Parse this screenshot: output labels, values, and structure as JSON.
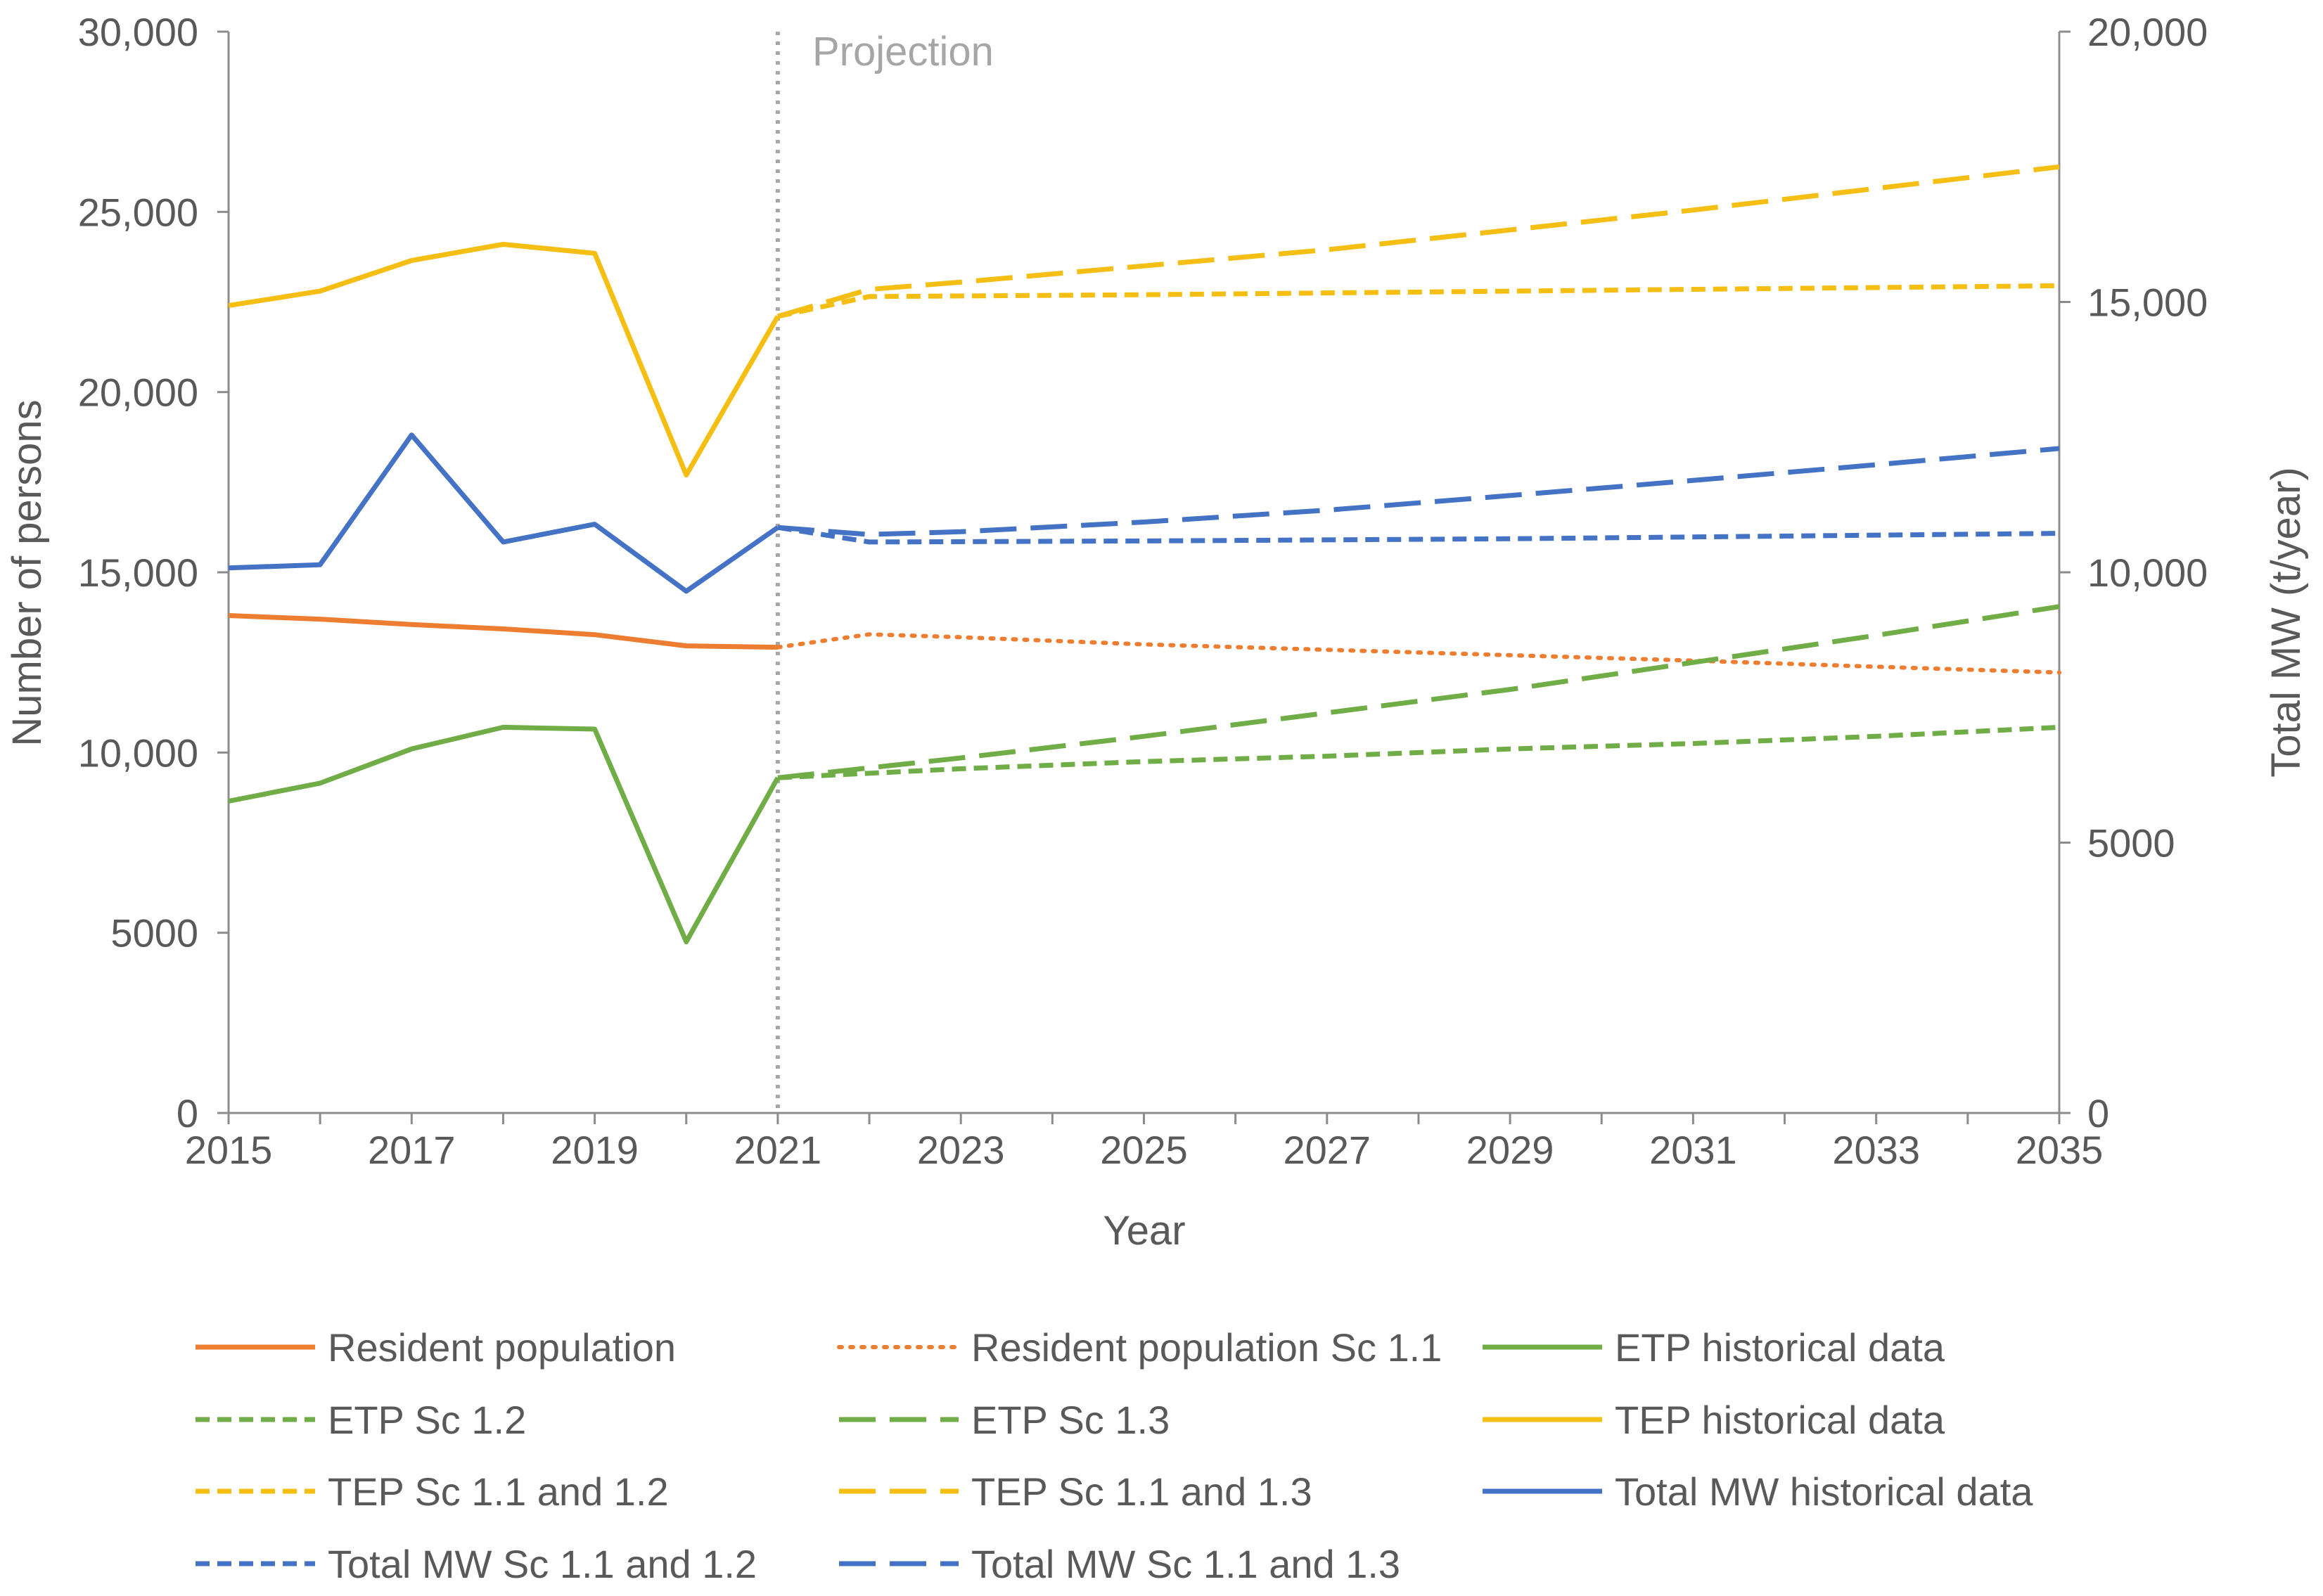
{
  "chart_data": {
    "type": "line",
    "xlabel": "Year",
    "ylabel_left": "Number of persons",
    "ylabel_right": "Total MW (t/year)",
    "xlim": [
      2015,
      2035
    ],
    "ylim_left": [
      0,
      30000
    ],
    "ylim_right": [
      0,
      20000
    ],
    "x_ticks": [
      "2015",
      "2017",
      "2019",
      "2021",
      "2023",
      "2025",
      "2027",
      "2029",
      "2031",
      "2033",
      "2035"
    ],
    "y_left_ticks": [
      {
        "value": 0,
        "label": "0"
      },
      {
        "value": 5000,
        "label": "5000"
      },
      {
        "value": 10000,
        "label": "10,000"
      },
      {
        "value": 15000,
        "label": "15,000"
      },
      {
        "value": 20000,
        "label": "20,000"
      },
      {
        "value": 25000,
        "label": "25,000"
      },
      {
        "value": 30000,
        "label": "30,000"
      }
    ],
    "y_right_ticks": [
      {
        "value": 0,
        "label": "0"
      },
      {
        "value": 5000,
        "label": "5000"
      },
      {
        "value": 10000,
        "label": "10,000"
      },
      {
        "value": 15000,
        "label": "15,000"
      },
      {
        "value": 20000,
        "label": "20,000"
      }
    ],
    "projection_start": 2021,
    "projection_label": "Projection",
    "colors": {
      "resident": "#ED7D31",
      "etp": "#70AD47",
      "tep": "#F5BE12",
      "mw": "#4472C4",
      "axis": "#8c8c8c",
      "divider": "#a6a6a6",
      "text": "#595959"
    },
    "series": [
      {
        "name": "Resident population",
        "color": "#ED7D31",
        "dash": "solid",
        "axis": "left",
        "x": [
          2015,
          2016,
          2017,
          2018,
          2019,
          2020,
          2021
        ],
        "y": [
          13800,
          13700,
          13550,
          13430,
          13270,
          12960,
          12920
        ]
      },
      {
        "name": "Resident population Sc 1.1",
        "color": "#ED7D31",
        "dash": "dot",
        "axis": "left",
        "x": [
          2021,
          2022,
          2023,
          2025,
          2027,
          2029,
          2031,
          2033,
          2035
        ],
        "y": [
          12920,
          13280,
          13200,
          13000,
          12850,
          12700,
          12550,
          12380,
          12220
        ]
      },
      {
        "name": "ETP historical data",
        "color": "#70AD47",
        "dash": "solid",
        "axis": "left",
        "x": [
          2015,
          2016,
          2017,
          2018,
          2019,
          2020,
          2021
        ],
        "y": [
          8650,
          9150,
          10100,
          10700,
          10650,
          4750,
          9300
        ]
      },
      {
        "name": "ETP Sc 1.2",
        "color": "#70AD47",
        "dash": "short",
        "axis": "left",
        "x": [
          2021,
          2023,
          2025,
          2027,
          2029,
          2031,
          2033,
          2035
        ],
        "y": [
          9300,
          9550,
          9750,
          9900,
          10100,
          10250,
          10450,
          10700
        ]
      },
      {
        "name": "ETP Sc 1.3",
        "color": "#70AD47",
        "dash": "long",
        "axis": "left",
        "x": [
          2021,
          2023,
          2025,
          2027,
          2029,
          2031,
          2033,
          2035
        ],
        "y": [
          9300,
          9850,
          10450,
          11100,
          11750,
          12500,
          13250,
          14050
        ]
      },
      {
        "name": "TEP historical data",
        "color": "#F5BE12",
        "dash": "solid",
        "axis": "left",
        "x": [
          2015,
          2016,
          2017,
          2018,
          2019,
          2020,
          2021
        ],
        "y": [
          22400,
          22800,
          23650,
          24100,
          23850,
          17700,
          22100
        ]
      },
      {
        "name": "TEP Sc 1.1 and 1.2",
        "color": "#F5BE12",
        "dash": "short",
        "axis": "left",
        "x": [
          2021,
          2022,
          2025,
          2029,
          2035
        ],
        "y": [
          22100,
          22650,
          22700,
          22800,
          22950
        ]
      },
      {
        "name": "TEP Sc 1.1 and 1.3",
        "color": "#F5BE12",
        "dash": "long",
        "axis": "left",
        "x": [
          2021,
          2022,
          2023,
          2025,
          2027,
          2029,
          2031,
          2033,
          2035
        ],
        "y": [
          22100,
          22850,
          23050,
          23500,
          23950,
          24500,
          25050,
          25650,
          26250
        ]
      },
      {
        "name": "Total MW historical data",
        "color": "#4472C4",
        "dash": "solid",
        "axis": "right",
        "x": [
          2015,
          2016,
          2017,
          2018,
          2019,
          2020,
          2021
        ],
        "y": [
          10080,
          10140,
          12540,
          10560,
          10890,
          9650,
          10830
        ]
      },
      {
        "name": "Total MW Sc 1.1 and 1.2",
        "color": "#4472C4",
        "dash": "short",
        "axis": "right",
        "x": [
          2021,
          2022,
          2025,
          2029,
          2035
        ],
        "y": [
          10830,
          10560,
          10580,
          10620,
          10720
        ]
      },
      {
        "name": "Total MW Sc 1.1 and 1.3",
        "color": "#4472C4",
        "dash": "long",
        "axis": "right",
        "x": [
          2021,
          2022,
          2023,
          2025,
          2027,
          2029,
          2031,
          2033,
          2035
        ],
        "y": [
          10830,
          10700,
          10750,
          10930,
          11150,
          11420,
          11700,
          11990,
          12290
        ]
      }
    ],
    "legend": [
      {
        "label": "Resident population",
        "series": 0
      },
      {
        "label": "Resident population Sc 1.1",
        "series": 1
      },
      {
        "label": "ETP historical data",
        "series": 2
      },
      {
        "label": "ETP Sc 1.2",
        "series": 3
      },
      {
        "label": "ETP Sc 1.3",
        "series": 4
      },
      {
        "label": "TEP historical data",
        "series": 5
      },
      {
        "label": "TEP Sc 1.1 and 1.2",
        "series": 6
      },
      {
        "label": "TEP Sc 1.1 and 1.3",
        "series": 7
      },
      {
        "label": "Total MW historical data",
        "series": 8
      },
      {
        "label": "Total MW Sc 1.1 and 1.2",
        "series": 9
      },
      {
        "label": "Total MW Sc 1.1 and 1.3",
        "series": 10
      }
    ]
  }
}
